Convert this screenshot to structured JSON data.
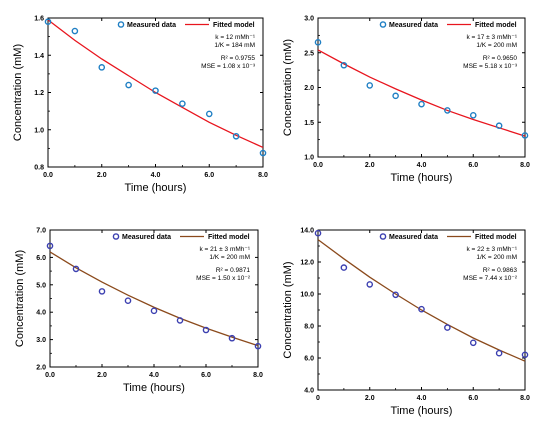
{
  "chart_data": [
    {
      "type": "scatter",
      "xlabel": "Time (hours)",
      "ylabel": "Concentration (mM)",
      "xlim": [
        0,
        8
      ],
      "ylim": [
        0.8,
        1.6
      ],
      "xticks": [
        "0.0",
        "2.0",
        "4.0",
        "6.0",
        "8.0"
      ],
      "yticks": [
        "0.8",
        "1.0",
        "1.2",
        "1.4",
        "1.6"
      ],
      "legend": [
        "Measured data",
        "Fitted model"
      ],
      "annotation": [
        "k = 12 mMh⁻¹",
        "1/K = 184 mM",
        "R² = 0.9755",
        "MSE = 1.08 x 10⁻³"
      ],
      "marker_color": "#1f7fc4",
      "line_color": "#e8151e",
      "series": [
        {
          "name": "Measured data",
          "x": [
            0,
            1,
            2,
            3,
            4,
            5,
            6,
            7,
            8
          ],
          "y": [
            1.58,
            1.53,
            1.335,
            1.24,
            1.21,
            1.14,
            1.085,
            0.965,
            0.875
          ]
        },
        {
          "name": "Fitted model",
          "x": [
            0,
            1,
            2,
            3,
            4,
            5,
            6,
            7,
            8
          ],
          "y": [
            1.59,
            1.48,
            1.38,
            1.29,
            1.2,
            1.12,
            1.04,
            0.97,
            0.905
          ]
        }
      ]
    },
    {
      "type": "scatter",
      "xlabel": "Time (hours)",
      "ylabel": "Concentration (mM)",
      "xlim": [
        0,
        8
      ],
      "ylim": [
        1.0,
        3.0
      ],
      "xticks": [
        "0.0",
        "2.0",
        "4.0",
        "6.0",
        "8.0"
      ],
      "yticks": [
        "1.0",
        "1.5",
        "2.0",
        "2.5",
        "3.0"
      ],
      "legend": [
        "Measured data",
        "Fitted model"
      ],
      "annotation": [
        "k = 17 ± 3 mMh⁻¹",
        "1/K = 200 mM",
        "R² = 0.9650",
        "MSE = 5.18 x 10⁻³"
      ],
      "marker_color": "#1f7fc4",
      "line_color": "#e8151e",
      "series": [
        {
          "name": "Measured data",
          "x": [
            0,
            1,
            2,
            3,
            4,
            5,
            6,
            7,
            8
          ],
          "y": [
            2.65,
            2.32,
            2.03,
            1.88,
            1.76,
            1.67,
            1.6,
            1.45,
            1.31
          ]
        },
        {
          "name": "Fitted model",
          "x": [
            0,
            1,
            2,
            3,
            4,
            5,
            6,
            7,
            8
          ],
          "y": [
            2.54,
            2.34,
            2.15,
            1.98,
            1.82,
            1.67,
            1.54,
            1.42,
            1.3
          ]
        }
      ]
    },
    {
      "type": "scatter",
      "xlabel": "Time (hours)",
      "ylabel": "Concentration (mM)",
      "xlim": [
        0,
        8
      ],
      "ylim": [
        2.0,
        7.0
      ],
      "xticks": [
        "0.0",
        "2.0",
        "4.0",
        "6.0",
        "8.0"
      ],
      "yticks": [
        "2.0",
        "3.0",
        "4.0",
        "5.0",
        "6.0",
        "7.0"
      ],
      "legend": [
        "Measured data",
        "Fitted model"
      ],
      "annotation": [
        "k = 21 ± 3 mMh⁻¹",
        "1/K = 200 mM",
        "R² = 0.9871",
        "MSE = 1.50 x 10⁻²"
      ],
      "marker_color": "#3b3fb0",
      "line_color": "#8b4a1c",
      "series": [
        {
          "name": "Measured data",
          "x": [
            0,
            1,
            2,
            3,
            4,
            5,
            6,
            7,
            8
          ],
          "y": [
            6.42,
            5.58,
            4.76,
            4.42,
            4.05,
            3.7,
            3.35,
            3.05,
            2.76
          ]
        },
        {
          "name": "Fitted model",
          "x": [
            0,
            1,
            2,
            3,
            4,
            5,
            6,
            7,
            8
          ],
          "y": [
            6.2,
            5.62,
            5.1,
            4.62,
            4.18,
            3.78,
            3.42,
            3.09,
            2.78
          ]
        }
      ]
    },
    {
      "type": "scatter",
      "xlabel": "Time (hours)",
      "ylabel": "Concentration (mM)",
      "xlim": [
        0,
        8
      ],
      "ylim": [
        4.0,
        14.0
      ],
      "xticks": [
        "0",
        "2.0",
        "4.0",
        "6.0",
        "8.0"
      ],
      "yticks": [
        "4.0",
        "6.0",
        "8.0",
        "10.0",
        "12.0",
        "14.0"
      ],
      "legend": [
        "Measured data",
        "Fitted model"
      ],
      "annotation": [
        "k = 22 ± 3 mMh⁻¹",
        "1/K = 200 mM",
        "R² = 0.9863",
        "MSE = 7.44 x 10⁻²"
      ],
      "marker_color": "#3b3fb0",
      "line_color": "#8b4a1c",
      "series": [
        {
          "name": "Measured data",
          "x": [
            0,
            1,
            2,
            3,
            4,
            5,
            6,
            7,
            8
          ],
          "y": [
            13.8,
            11.65,
            10.6,
            9.95,
            9.05,
            7.9,
            6.95,
            6.3,
            6.2
          ]
        },
        {
          "name": "Fitted model",
          "x": [
            0,
            1,
            2,
            3,
            4,
            5,
            6,
            7,
            8
          ],
          "y": [
            13.4,
            12.2,
            11.05,
            10.0,
            9.0,
            8.1,
            7.25,
            6.5,
            5.8
          ]
        }
      ]
    }
  ]
}
